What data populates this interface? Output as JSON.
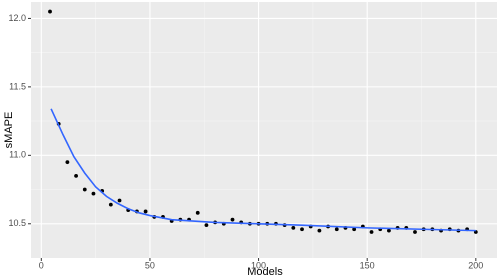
{
  "chart_data": {
    "type": "scatter",
    "x_label": "Models",
    "y_label": "sMAPE",
    "xlim": [
      -4.75,
      209.75
    ],
    "ylim": [
      10.25,
      12.12
    ],
    "xticks": [
      0,
      50,
      100,
      150,
      200
    ],
    "yticks": [
      10.5,
      {
        "value": 11,
        "label": "11.0"
      },
      11.5,
      {
        "value": 12,
        "label": "12.0"
      }
    ],
    "x_minor_ticks": [
      25,
      75,
      125,
      175
    ],
    "y_minor_ticks": [
      10.75,
      11.25,
      11.75
    ],
    "grid": true,
    "background": "#ebebeb",
    "series": [
      {
        "mode": "points",
        "color": "#000000",
        "x": [
          4,
          8,
          12,
          16,
          20,
          24,
          28,
          32,
          36,
          40,
          44,
          48,
          52,
          56,
          60,
          64,
          68,
          72,
          76,
          80,
          84,
          88,
          92,
          96,
          100,
          104,
          108,
          112,
          116,
          120,
          124,
          128,
          132,
          136,
          140,
          144,
          148,
          152,
          156,
          160,
          164,
          168,
          172,
          176,
          180,
          184,
          188,
          192,
          196,
          200
        ],
        "values": [
          12.05,
          11.23,
          10.95,
          10.85,
          10.75,
          10.72,
          10.74,
          10.64,
          10.67,
          10.6,
          10.59,
          10.59,
          10.55,
          10.55,
          10.52,
          10.53,
          10.53,
          10.58,
          10.49,
          10.51,
          10.5,
          10.53,
          10.51,
          10.5,
          10.5,
          10.5,
          10.5,
          10.49,
          10.47,
          10.46,
          10.48,
          10.45,
          10.48,
          10.46,
          10.47,
          10.46,
          10.48,
          10.44,
          10.46,
          10.45,
          10.47,
          10.47,
          10.44,
          10.46,
          10.46,
          10.45,
          10.46,
          10.45,
          10.46,
          10.44
        ]
      },
      {
        "mode": "line",
        "color": "#3366ff",
        "x": [
          4.5,
          10,
          15,
          20,
          25,
          30,
          35,
          40,
          45,
          50,
          60,
          80,
          100,
          120,
          150,
          175,
          200
        ],
        "values": [
          11.34,
          11.15,
          10.99,
          10.87,
          10.77,
          10.7,
          10.65,
          10.61,
          10.58,
          10.56,
          10.53,
          10.51,
          10.5,
          10.49,
          10.47,
          10.46,
          10.45
        ]
      }
    ]
  }
}
